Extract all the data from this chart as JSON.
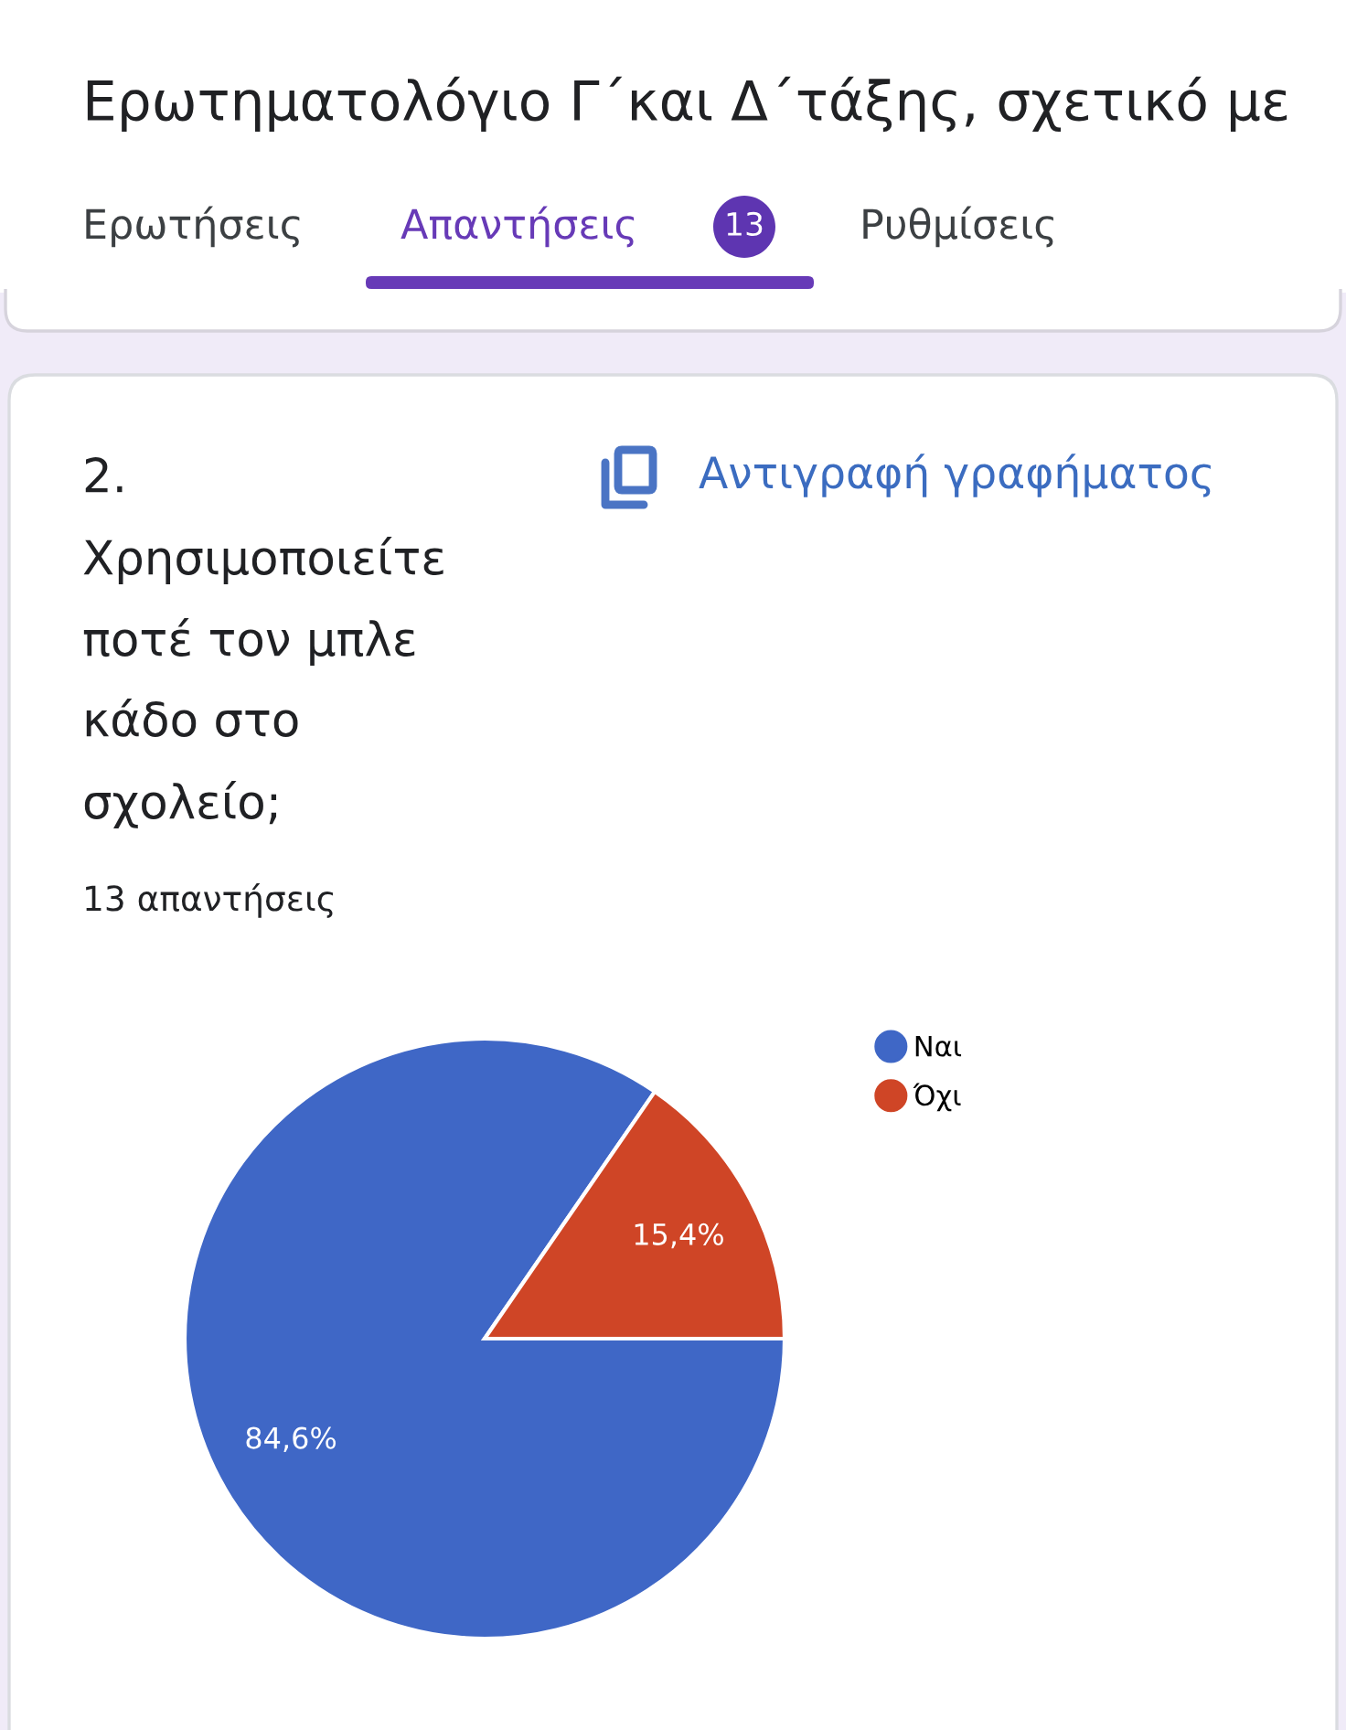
{
  "chart_data": {
    "type": "pie",
    "title": "2. Χρησιμοποιείτε ποτέ τον μπλε κάδο στο σχολείο;",
    "subtitle": "13 απαντήσεις",
    "categories": [
      "Ναι",
      "Όχι"
    ],
    "values": [
      84.6,
      15.4
    ],
    "colors": [
      "#3f67c6",
      "#cf4526"
    ],
    "value_labels": [
      "84,6%",
      "15,4%"
    ],
    "legend": "top right",
    "annotations": [
      "Ερωτηματολόγιο Γ΄και Δ΄τάξης, σχετικό με",
      "Ερωτήσεις",
      "Απαντήσεις",
      "13",
      "Ρυθμίσεις",
      "Αντιγραφή γραφήματος"
    ]
  }
}
